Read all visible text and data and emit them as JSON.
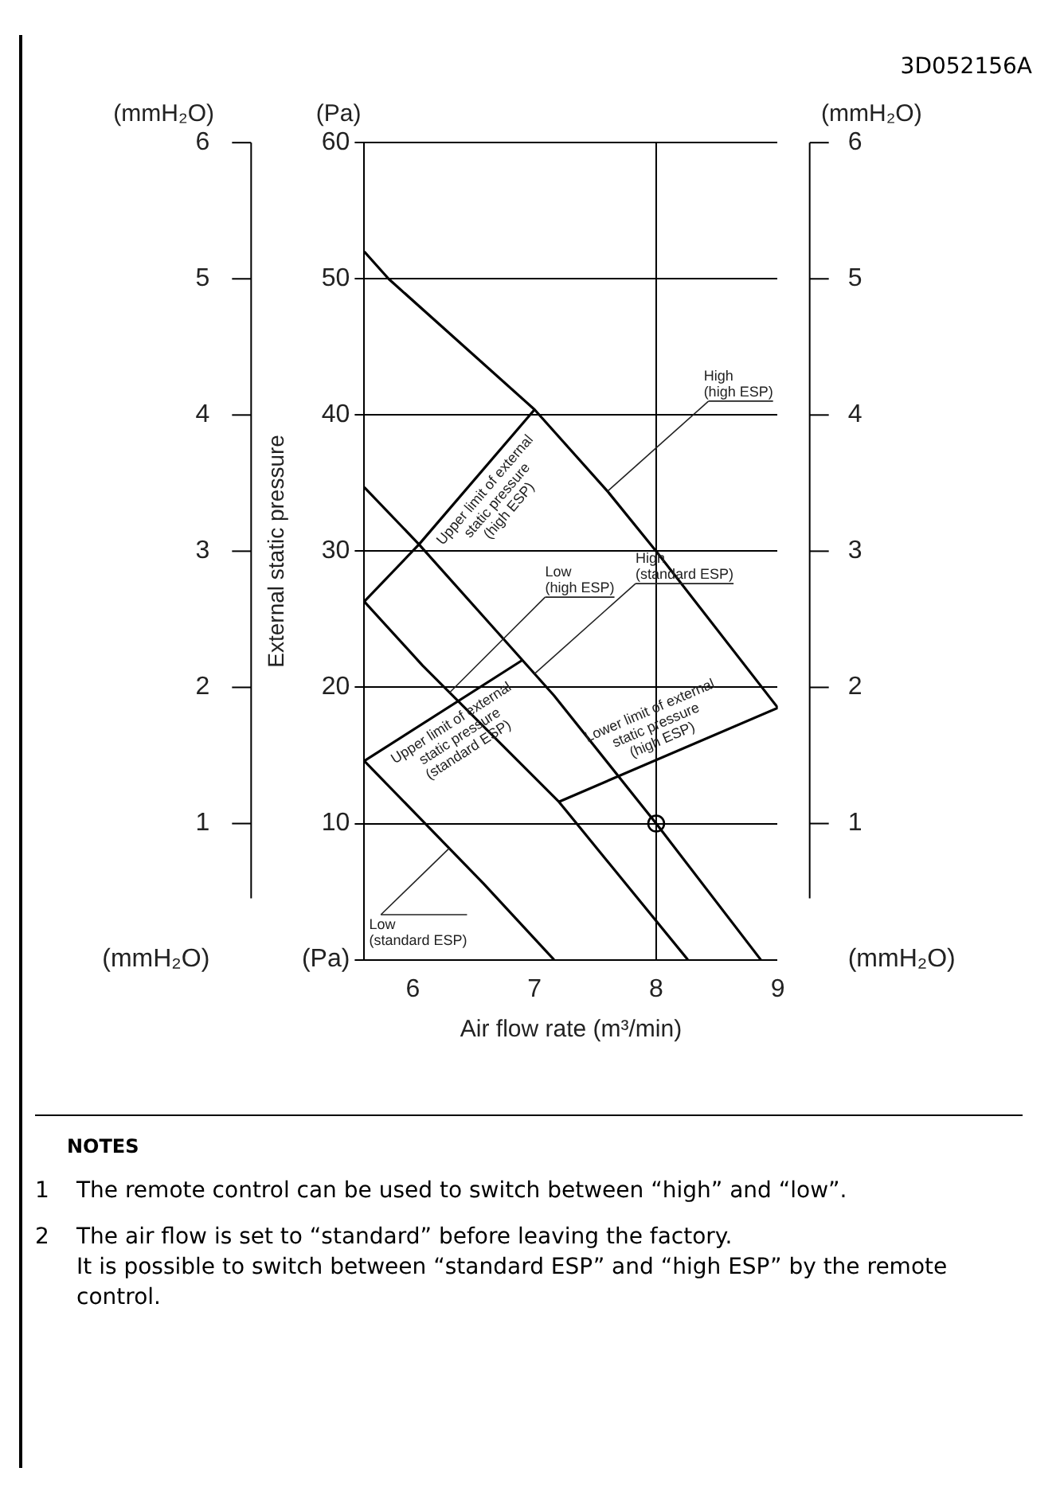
{
  "chart_data": {
    "type": "line",
    "xlabel": "Air flow rate (m³/min)",
    "ylabel": "External static pressure",
    "y2label": "(mmH₂O)",
    "y3label": "(mmH₂O)",
    "xlim": [
      5.6,
      9
    ],
    "xticks": [
      6,
      7,
      8,
      9
    ],
    "ylim": [
      0,
      60
    ],
    "yticks": [
      {
        "value": 0,
        "label": "(Pa)"
      },
      10,
      20,
      30,
      40,
      50,
      60
    ],
    "y2lim": [
      0,
      6
    ],
    "y2ticks": [
      {
        "value": 0,
        "label": "(mmH₂O)"
      },
      1,
      2,
      3,
      4,
      5,
      6
    ],
    "y3lim": [
      0,
      6
    ],
    "y3ticks": [
      {
        "value": 0,
        "label": "(mmH₂O)"
      },
      1,
      2,
      3,
      4,
      5,
      6
    ],
    "grid": "y",
    "legend": false,
    "marker": "none",
    "line_style": "solid",
    "ref_lines": [
      {
        "axis": "x",
        "value": 8,
        "label": null,
        "color": "#000000"
      }
    ],
    "series": [
      {
        "color": "#000000",
        "x": [
          5.6,
          5.8,
          7,
          7.6,
          8,
          9
        ],
        "values": [
          52,
          50,
          40.4,
          34.4,
          30,
          18.5
        ]
      },
      {
        "color": "#000000",
        "x": [
          5.6,
          6.05,
          6.58,
          7.16,
          8,
          8.86
        ],
        "values": [
          34.7,
          30.5,
          25.2,
          19.4,
          10,
          0
        ]
      },
      {
        "color": "#000000",
        "x": [
          5.6,
          6.08,
          7.2,
          8.26
        ],
        "values": [
          26.3,
          21.6,
          11.6,
          0
        ]
      },
      {
        "color": "#000000",
        "x": [
          5.6,
          6.58,
          7.16
        ],
        "values": [
          14.6,
          5.6,
          0
        ]
      },
      {
        "color": "#000000",
        "x": [
          5.6,
          6.05,
          7
        ],
        "values": [
          26.3,
          30.5,
          40.4
        ]
      },
      {
        "color": "#000000",
        "x": [
          5.6,
          6.9
        ],
        "values": [
          14.6,
          22
        ]
      },
      {
        "color": "#000000",
        "x": [
          7.2,
          9
        ],
        "values": [
          11.6,
          18.5
        ]
      },
      {
        "type": "scatter",
        "marker": "circle",
        "color": "#000000",
        "x": [
          8
        ],
        "values": [
          10
        ]
      }
    ],
    "annotations": [
      "3D052156A",
      "(Pa)",
      "NOTES",
      "1\tThe remote control can be used to switch between “high” and “low”.",
      "2\tThe air flow is set to “standard” before leaving the factory.\nIt is possible to switch between “standard ESP” and “high ESP” by the remote control.",
      {
        "text": "High\n(high ESP)",
        "x": 7.6,
        "y": 34.4
      },
      {
        "text": "Low\n(high ESP)",
        "x": 6.3,
        "y": 19.6
      },
      {
        "text": "High\n(standard ESP)",
        "x": 7,
        "y": 21
      },
      {
        "text": "Low\n(standard ESP)",
        "x": 6.3,
        "y": 8.2
      },
      {
        "text": "Upper limit of external\nstatic pressure\n(high ESP)",
        "x": 6.5,
        "y": 35.2
      },
      {
        "text": "Upper limit of external\nstatic pressure\n(standard ESP)",
        "x": 6.25,
        "y": 18.3
      },
      {
        "text": "Lower limit of external\nstatic pressure\n(high ESP)",
        "x": 8.1,
        "y": 15.1
      }
    ]
  }
}
